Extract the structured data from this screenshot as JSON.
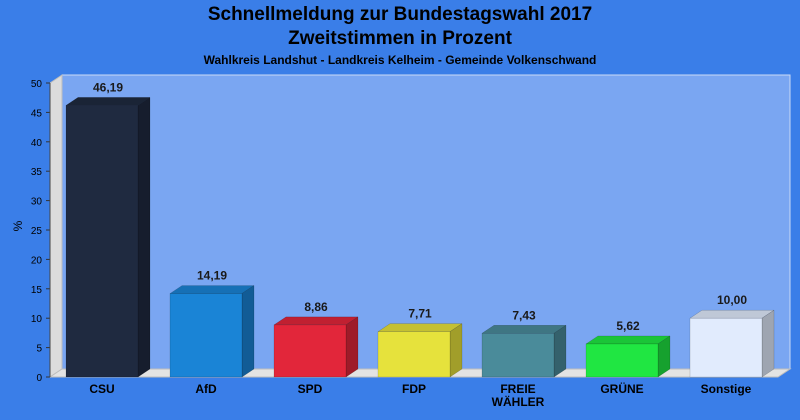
{
  "chart_data": {
    "type": "bar",
    "title": "Schnellmeldung zur Bundestagswahl 2017",
    "subtitle": "Zweitstimmen in Prozent",
    "caption": "Wahlkreis Landshut - Landkreis Kelheim - Gemeinde Volkenschwand",
    "ylabel": "%",
    "xlabel": "",
    "ylim": [
      0,
      50
    ],
    "yticks": [
      0,
      5,
      10,
      15,
      20,
      25,
      30,
      35,
      40,
      45,
      50
    ],
    "grid": false,
    "categories": [
      "CSU",
      "AfD",
      "SPD",
      "FDP",
      "FREIE WÄHLER",
      "GRÜNE",
      "Sonstige"
    ],
    "category_lines": [
      [
        "CSU"
      ],
      [
        "AfD"
      ],
      [
        "SPD"
      ],
      [
        "FDP"
      ],
      [
        "FREIE",
        "WÄHLER"
      ],
      [
        "GRÜNE"
      ],
      [
        "Sonstige"
      ]
    ],
    "values": [
      46.19,
      14.19,
      8.86,
      7.71,
      7.43,
      5.62,
      10.0
    ],
    "value_labels": [
      "46,19",
      "14,19",
      "8,86",
      "7,71",
      "7,43",
      "5,62",
      "10,00"
    ],
    "colors": [
      "#1f2a40",
      "#1a84d6",
      "#e2263a",
      "#e6e23c",
      "#4a8b9a",
      "#20e642",
      "#e1ebfd"
    ]
  }
}
